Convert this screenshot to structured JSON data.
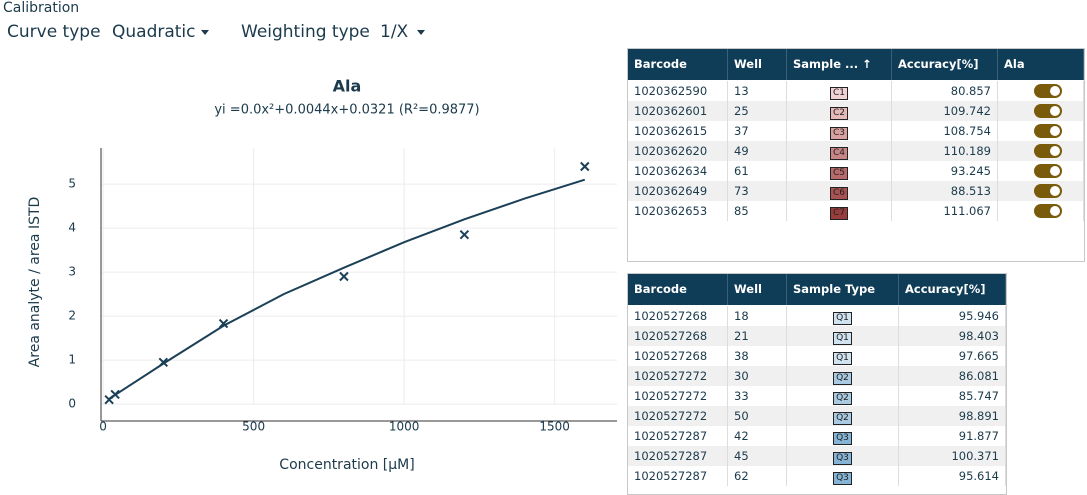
{
  "header": {
    "section": "Calibration",
    "curve_type_label": "Curve type",
    "curve_type": "Quadratic",
    "weighting_label": "Weighting type",
    "weighting": "1/X"
  },
  "chart": {
    "type": "scatter",
    "title": "Ala",
    "subtitle": "yi =0.0x²+0.0044x+0.0321 (R²=0.9877)",
    "x_label": "Concentration [µM]",
    "y_label": "Area analyte / area ISTD",
    "color": "#1b4057",
    "grid": true,
    "xlim": [
      -7,
      1707
    ],
    "ylim": [
      -0.02,
      5.82
    ],
    "xticks": [
      0,
      500,
      1000,
      1500
    ],
    "yticks": [
      0,
      1,
      2,
      3,
      4,
      5
    ],
    "points": {
      "x": [
        20,
        40,
        200,
        400,
        800,
        1200,
        1600
      ],
      "y": [
        0.1,
        0.22,
        0.95,
        1.83,
        2.9,
        3.85,
        5.4
      ]
    },
    "fit": {
      "x": [
        20,
        200,
        400,
        600,
        800,
        1000,
        1200,
        1400,
        1600
      ],
      "y": [
        0.12,
        0.92,
        1.78,
        2.5,
        3.1,
        3.68,
        4.2,
        4.67,
        5.1
      ]
    }
  },
  "tables": [
    {
      "columns": [
        "Barcode",
        "Well",
        "Sample ... ↑",
        "Accuracy[%]",
        "Ala"
      ],
      "rows": [
        [
          "1020362590",
          "13",
          "C1",
          "80.857",
          true
        ],
        [
          "1020362601",
          "25",
          "C2",
          "109.742",
          true
        ],
        [
          "1020362615",
          "37",
          "C3",
          "108.754",
          true
        ],
        [
          "1020362620",
          "49",
          "C4",
          "110.189",
          true
        ],
        [
          "1020362634",
          "61",
          "C5",
          "93.245",
          true
        ],
        [
          "1020362649",
          "73",
          "C6",
          "88.513",
          true
        ],
        [
          "1020362653",
          "85",
          "C7",
          "111.067",
          true
        ]
      ],
      "badge_colors": [
        "#f2d2d2",
        "#e6b8b8",
        "#d9a0a0",
        "#c98585",
        "#b86a6a",
        "#a85252",
        "#983c3c"
      ]
    },
    {
      "columns": [
        "Barcode",
        "Well",
        "Sample Type",
        "Accuracy[%]"
      ],
      "rows": [
        [
          "1020527268",
          "18",
          "Q1",
          "95.946"
        ],
        [
          "1020527268",
          "21",
          "Q1",
          "98.403"
        ],
        [
          "1020527268",
          "38",
          "Q1",
          "97.665"
        ],
        [
          "1020527272",
          "30",
          "Q2",
          "86.081"
        ],
        [
          "1020527272",
          "33",
          "Q2",
          "85.747"
        ],
        [
          "1020527272",
          "50",
          "Q2",
          "98.891"
        ],
        [
          "1020527287",
          "42",
          "Q3",
          "91.877"
        ],
        [
          "1020527287",
          "45",
          "Q3",
          "100.371"
        ],
        [
          "1020527287",
          "62",
          "Q3",
          "95.614"
        ]
      ],
      "badge_colors": [
        "#cfe3f0",
        "#cfe3f0",
        "#cfe3f0",
        "#a9cbe2",
        "#a9cbe2",
        "#a9cbe2",
        "#86b4d6",
        "#86b4d6",
        "#86b4d6"
      ]
    }
  ]
}
